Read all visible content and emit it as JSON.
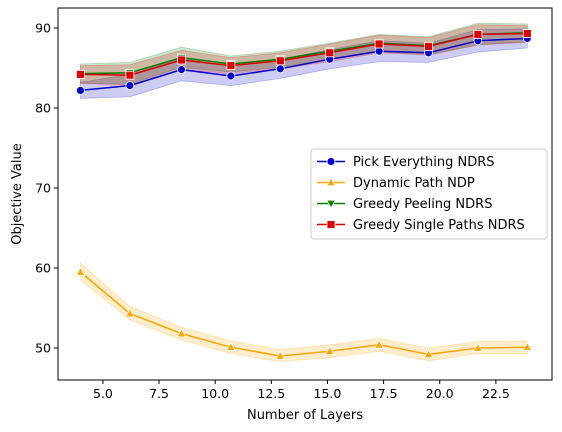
{
  "chart_data": {
    "type": "line",
    "title": "",
    "xlabel": "Number of Layers",
    "ylabel": "Objective Value",
    "xlim": [
      3.0,
      25.0
    ],
    "ylim": [
      46.0,
      92.5
    ],
    "xticks": [
      5.0,
      7.5,
      10.0,
      12.5,
      15.0,
      17.5,
      20.0,
      22.5
    ],
    "xtick_labels": [
      "5.0",
      "7.5",
      "10.0",
      "12.5",
      "15.0",
      "17.5",
      "20.0",
      "22.5"
    ],
    "yticks": [
      50,
      60,
      70,
      80,
      90
    ],
    "ytick_labels": [
      "50",
      "60",
      "70",
      "80",
      "90"
    ],
    "grid": false,
    "legend": "center-right",
    "x": [
      4,
      6.2,
      8.5,
      10.7,
      12.9,
      15.1,
      17.3,
      19.5,
      21.7,
      23.9
    ],
    "series": [
      {
        "name": "Pick Everything NDRS",
        "color": "#0000cc",
        "marker": "circle",
        "values": [
          82.2,
          82.8,
          84.8,
          84.0,
          84.9,
          86.1,
          87.1,
          86.9,
          88.4,
          88.7
        ],
        "lower": [
          81.2,
          81.4,
          83.4,
          82.8,
          83.7,
          84.9,
          85.8,
          85.7,
          87.0,
          87.5
        ],
        "upper": [
          83.2,
          84.2,
          86.2,
          85.2,
          86.1,
          87.3,
          88.4,
          88.1,
          89.8,
          89.9
        ]
      },
      {
        "name": "Dynamic Path NDP",
        "color": "#ffa500",
        "marker": "triangle-up",
        "values": [
          59.5,
          54.3,
          51.8,
          50.1,
          49.0,
          49.6,
          50.4,
          49.2,
          50.0,
          50.1
        ],
        "lower": [
          58.5,
          53.5,
          51.0,
          49.3,
          48.3,
          48.8,
          49.6,
          48.4,
          49.3,
          49.3
        ],
        "upper": [
          60.6,
          55.2,
          52.6,
          50.9,
          49.8,
          50.4,
          51.2,
          50.0,
          50.8,
          50.9
        ]
      },
      {
        "name": "Greedy Peeling NDRS",
        "color": "#008000",
        "marker": "triangle-down",
        "values": [
          84.3,
          84.4,
          86.3,
          85.5,
          86.1,
          87.1,
          88.1,
          87.8,
          89.2,
          89.4
        ],
        "lower": [
          83.1,
          83.0,
          85.1,
          84.5,
          85.1,
          86.1,
          87.0,
          86.7,
          87.9,
          88.3
        ],
        "upper": [
          85.5,
          85.7,
          87.6,
          86.5,
          87.1,
          88.1,
          89.2,
          88.9,
          90.6,
          90.5
        ]
      },
      {
        "name": "Greedy Single Paths NDRS",
        "color": "#dd0000",
        "marker": "square",
        "values": [
          84.2,
          84.1,
          86.0,
          85.3,
          85.9,
          86.9,
          88.0,
          87.7,
          89.2,
          89.3
        ],
        "lower": [
          83.1,
          82.8,
          84.8,
          84.3,
          84.9,
          85.8,
          86.9,
          86.6,
          87.9,
          88.2
        ],
        "upper": [
          85.3,
          85.4,
          87.2,
          86.3,
          86.9,
          88.0,
          89.1,
          88.8,
          90.4,
          90.3
        ]
      }
    ]
  }
}
